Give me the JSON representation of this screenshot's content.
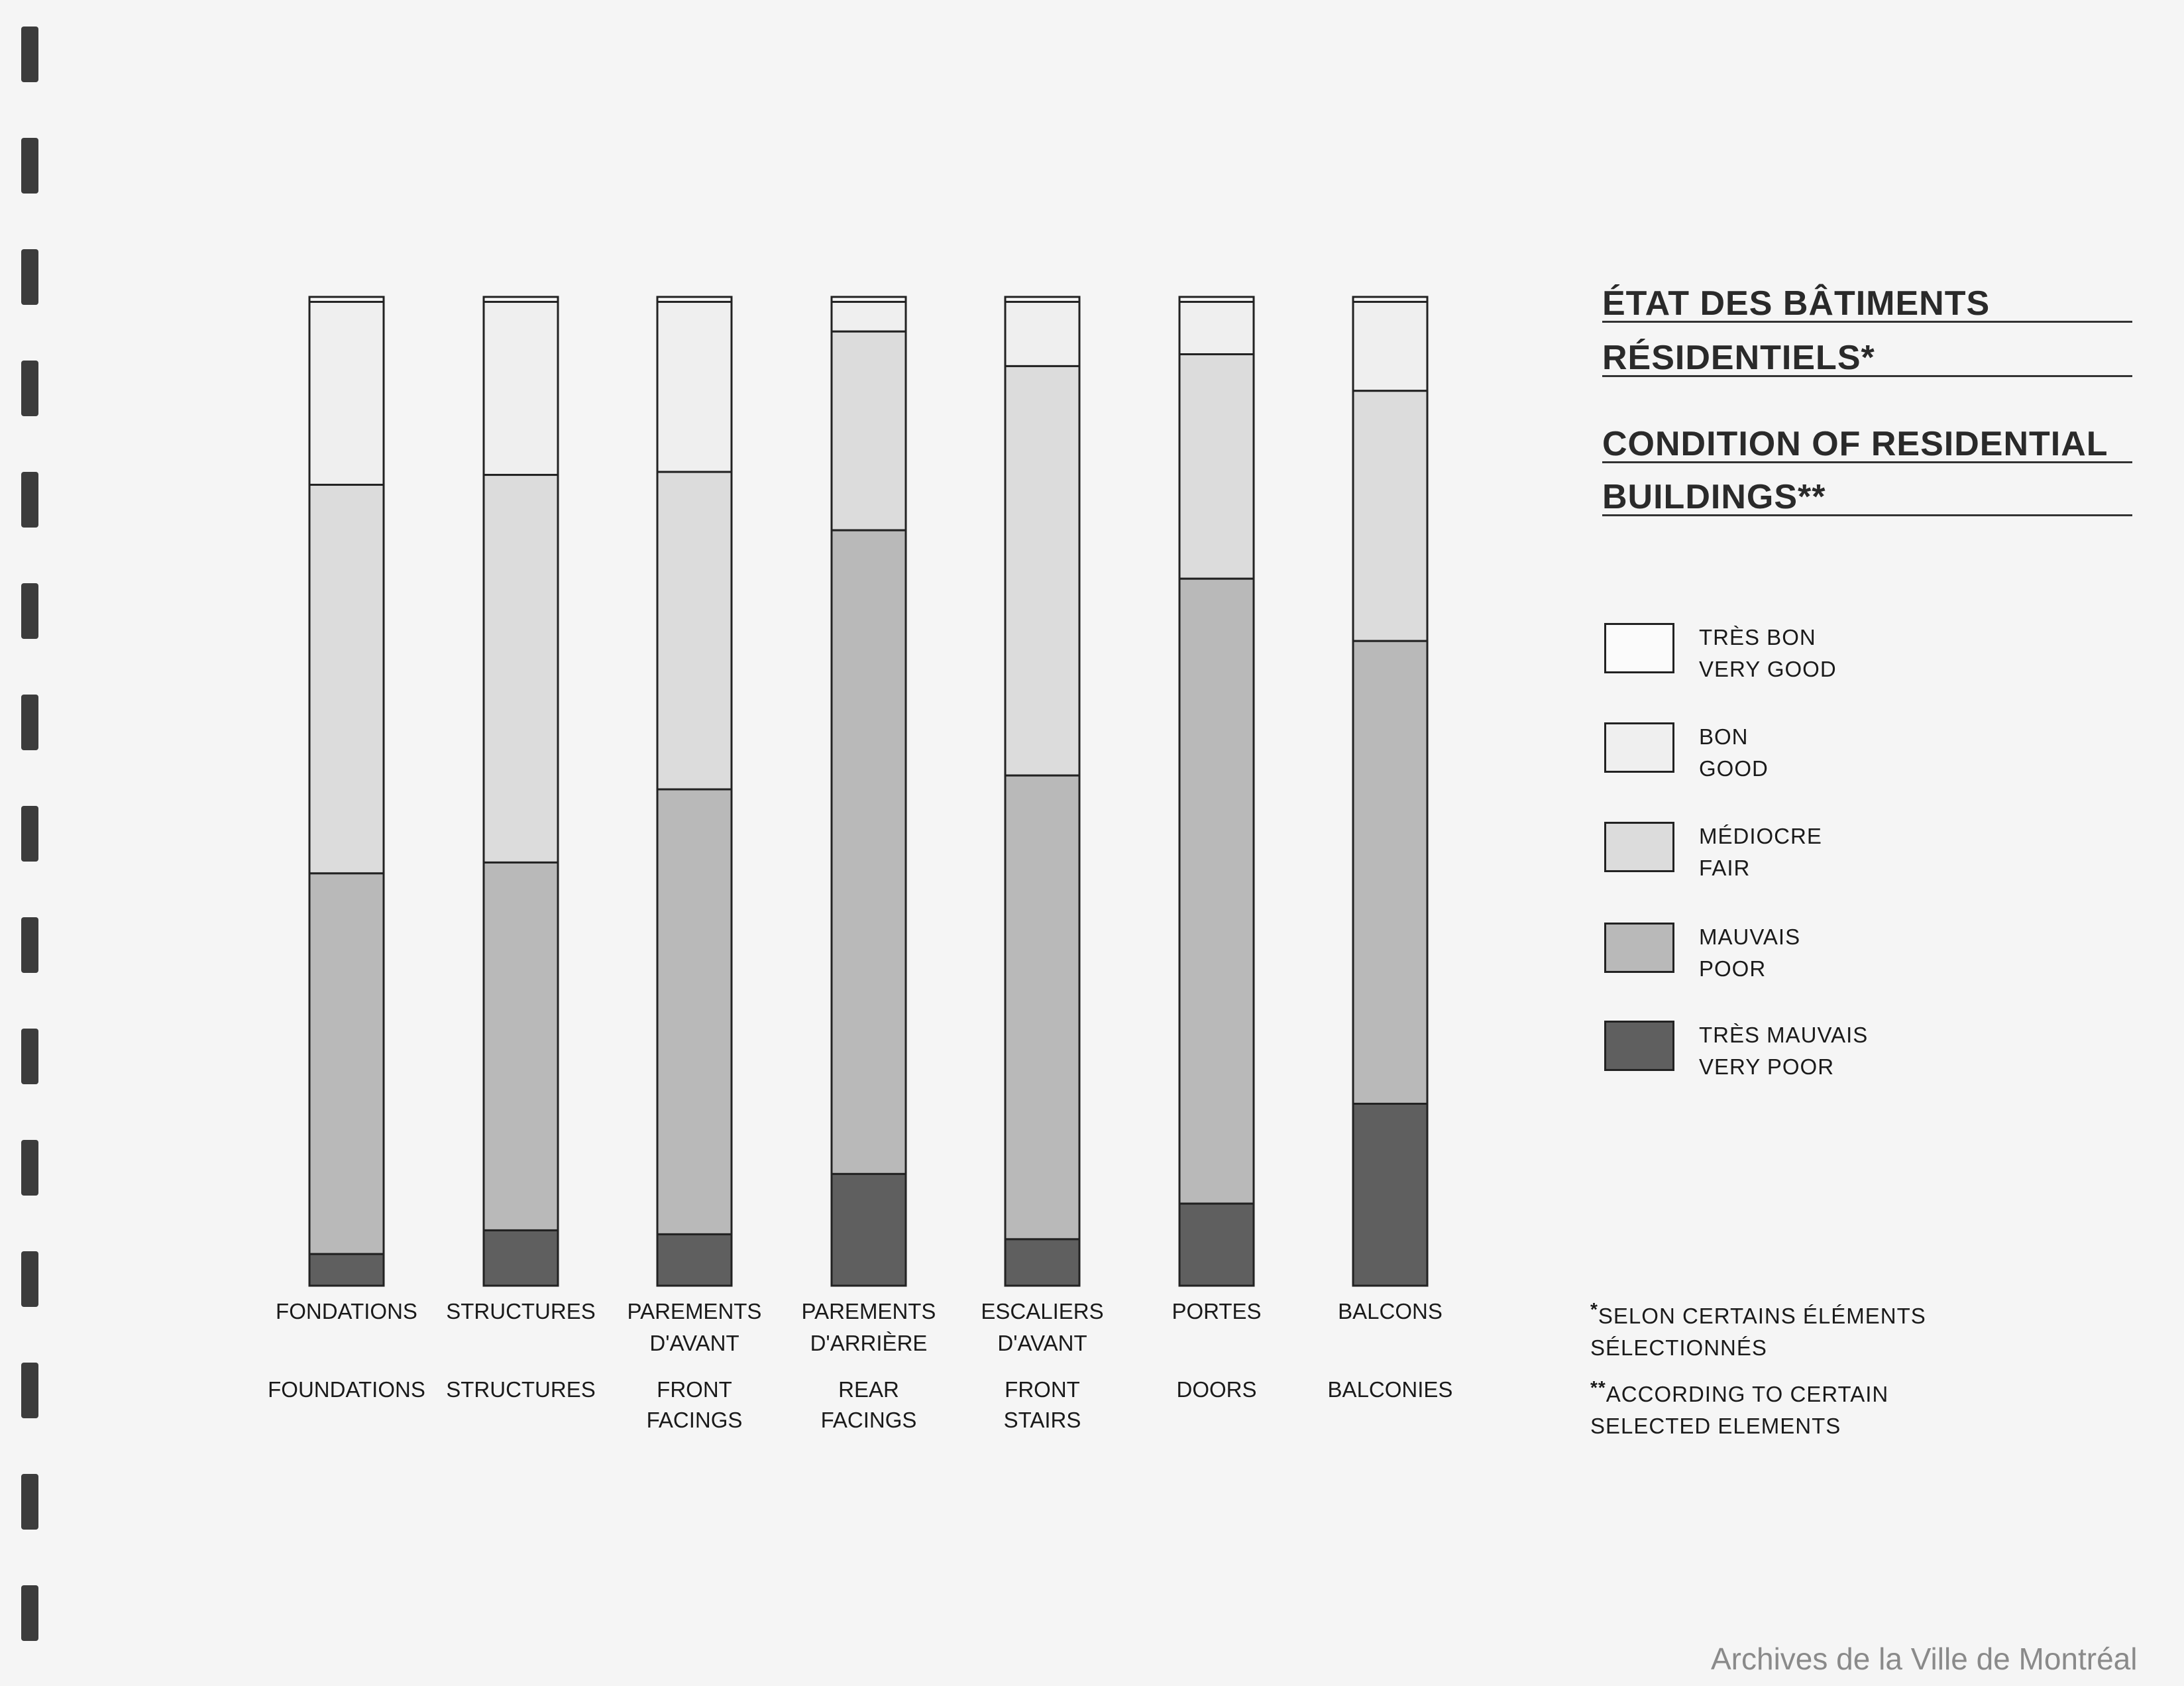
{
  "chart_data": {
    "type": "bar",
    "stacked": true,
    "orientation": "vertical",
    "ylim": [
      0,
      100
    ],
    "unit": "percent",
    "grid": false,
    "legend_position": "right",
    "title_fr": [
      "ÉTAT DES BÂTIMENTS",
      "RÉSIDENTIELS*"
    ],
    "title_en": [
      "CONDITION OF RESIDENTIAL",
      "BUILDINGS**"
    ],
    "categories": [
      {
        "fr": [
          "FONDATIONS"
        ],
        "en": [
          "FOUNDATIONS"
        ]
      },
      {
        "fr": [
          "STRUCTURES"
        ],
        "en": [
          "STRUCTURES"
        ]
      },
      {
        "fr": [
          "PAREMENTS",
          "D'AVANT"
        ],
        "en": [
          "FRONT",
          "FACINGS"
        ]
      },
      {
        "fr": [
          "PAREMENTS",
          "D'ARRIÈRE"
        ],
        "en": [
          "REAR",
          "FACINGS"
        ]
      },
      {
        "fr": [
          "ESCALIERS",
          "D'AVANT"
        ],
        "en": [
          "FRONT",
          "STAIRS"
        ]
      },
      {
        "fr": [
          "PORTES"
        ],
        "en": [
          "DOORS"
        ]
      },
      {
        "fr": [
          "BALCONS"
        ],
        "en": [
          "BALCONIES"
        ]
      }
    ],
    "series": [
      {
        "name_fr": "TRÈS BON",
        "name_en": "VERY GOOD",
        "color": "#fbfbfb",
        "values": [
          0.5,
          0.5,
          0.5,
          0.5,
          0.5,
          0.5,
          0.5
        ]
      },
      {
        "name_fr": "BON",
        "name_en": "GOOD",
        "color": "#efefef",
        "values": [
          18.5,
          17.5,
          17.2,
          3.0,
          6.5,
          5.3,
          9.0
        ]
      },
      {
        "name_fr": "MÉDIOCRE",
        "name_en": "FAIR",
        "color": "#dcdcdc",
        "values": [
          39.3,
          39.2,
          32.1,
          20.1,
          41.4,
          22.7,
          25.3
        ]
      },
      {
        "name_fr": "MAUVAIS",
        "name_en": "POOR",
        "color": "#b9b9b9",
        "values": [
          38.5,
          37.2,
          45.0,
          65.1,
          46.9,
          63.2,
          46.8
        ]
      },
      {
        "name_fr": "TRÈS MAUVAIS",
        "name_en": "VERY POOR",
        "color": "#5f5f5f",
        "values": [
          3.2,
          5.6,
          5.2,
          11.3,
          4.7,
          8.3,
          18.4
        ]
      }
    ]
  },
  "legend": [
    {
      "fr": "TRÈS BON",
      "en": "VERY GOOD",
      "color": "#fbfbfb"
    },
    {
      "fr": "BON",
      "en": "GOOD",
      "color": "#efefef"
    },
    {
      "fr": "MÉDIOCRE",
      "en": "FAIR",
      "color": "#dcdcdc"
    },
    {
      "fr": "MAUVAIS",
      "en": "POOR",
      "color": "#b9b9b9"
    },
    {
      "fr": "TRÈS MAUVAIS",
      "en": "VERY POOR",
      "color": "#5f5f5f"
    }
  ],
  "notes": {
    "fr_mark": "*",
    "fr_line1": "SELON CERTAINS ÉLÉMENTS",
    "fr_line2": "SÉLECTIONNÉS",
    "en_mark": "**",
    "en_line1": "ACCORDING TO CERTAIN",
    "en_line2": "SELECTED ELEMENTS"
  },
  "credit": "Archives de la Ville de Montréal"
}
